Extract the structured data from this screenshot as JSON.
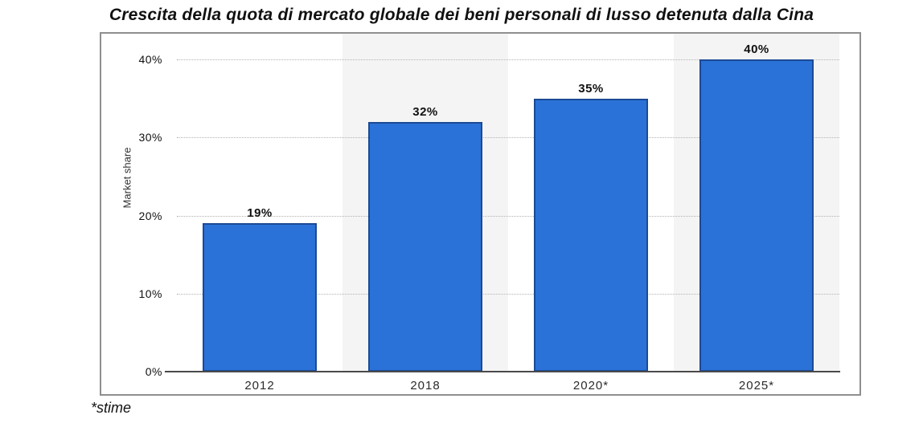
{
  "page": {
    "title": "Crescita della quota di mercato globale dei beni personali di lusso detenuta dalla Cina",
    "footnote": "*stime"
  },
  "chart_data": {
    "type": "bar",
    "title": "Crescita della quota di mercato globale dei beni personali di lusso detenuta dalla Cina",
    "categories": [
      "2012",
      "2018",
      "2020*",
      "2025*"
    ],
    "values": [
      19,
      32,
      35,
      40
    ],
    "value_labels": [
      "19%",
      "32%",
      "35%",
      "40%"
    ],
    "xlabel": "",
    "ylabel": "Market share",
    "ylim": [
      0,
      40
    ],
    "yticks": [
      0,
      10,
      20,
      30,
      40
    ],
    "ytick_labels": [
      "0%",
      "10%",
      "20%",
      "30%",
      "40%"
    ],
    "grid": "horizontal-dotted",
    "legend": "none",
    "footnote": "*stime",
    "colors": {
      "bar_fill": "#2a72d8",
      "bar_border": "#1b4a94",
      "gridline": "#b3b3b3",
      "axis_line": "#4a4a4a",
      "chart_border": "#8f8f8f",
      "band_alt": "#f4f4f4",
      "band_base": "#ffffff",
      "text": "#111111"
    }
  }
}
